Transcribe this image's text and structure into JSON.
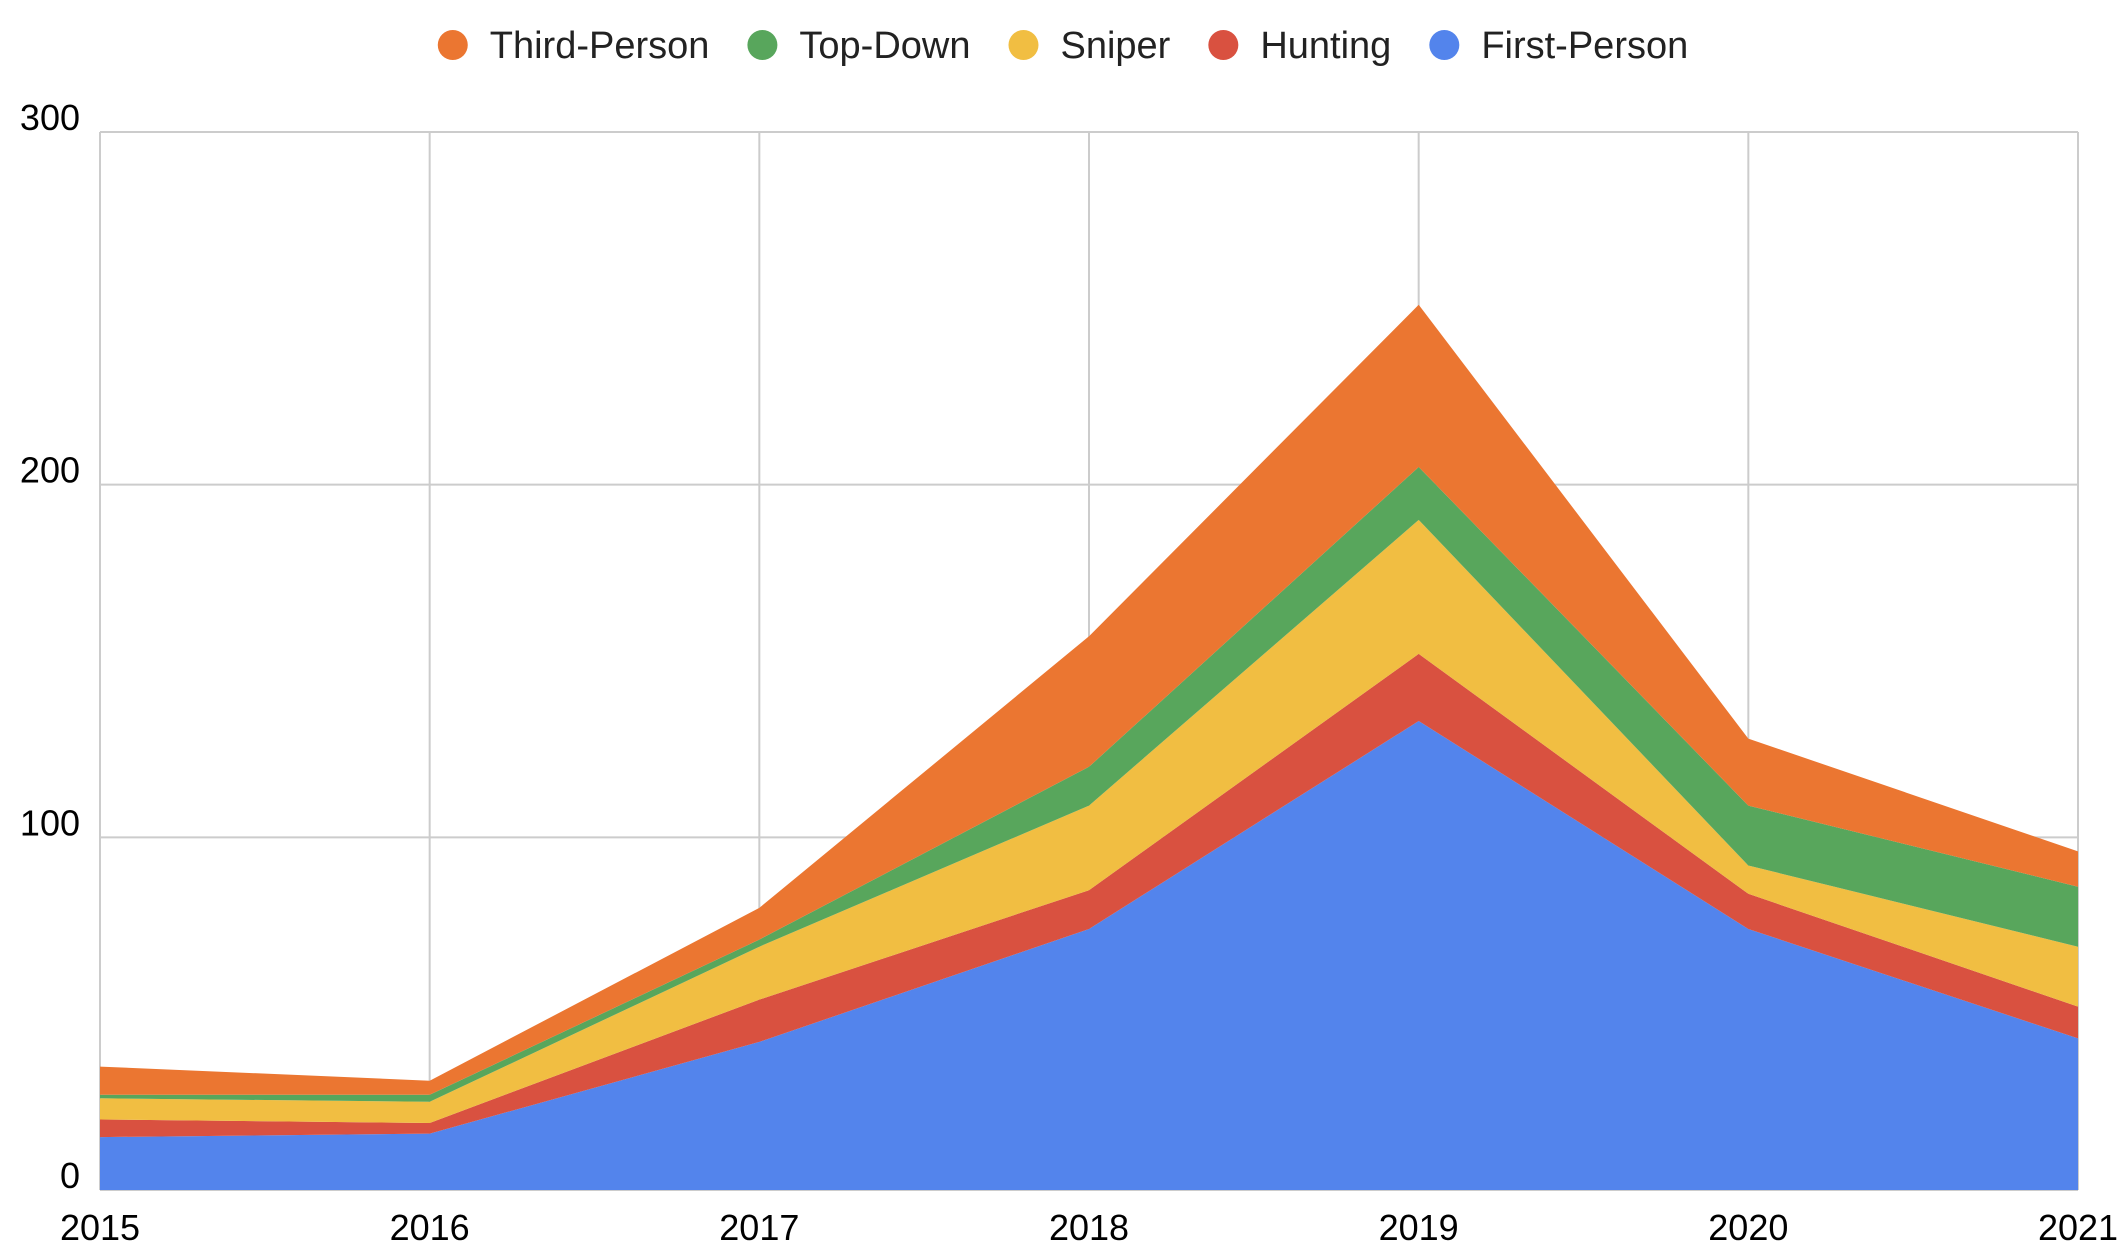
{
  "chart_data": {
    "type": "area",
    "stacked": true,
    "x": [
      2015,
      2016,
      2017,
      2018,
      2019,
      2020,
      2021
    ],
    "ylim": [
      0,
      300
    ],
    "yticks": [
      0,
      100,
      200,
      300
    ],
    "grid": true,
    "legend_position": "top",
    "title": "",
    "xlabel": "",
    "ylabel": "",
    "series": [
      {
        "name": "First-Person",
        "color": "#5384ec",
        "values": [
          15,
          16,
          42,
          74,
          133,
          74,
          43
        ]
      },
      {
        "name": "Hunting",
        "color": "#d95140",
        "values": [
          5,
          3,
          12,
          11,
          19,
          10,
          9
        ]
      },
      {
        "name": "Sniper",
        "color": "#f1be42",
        "values": [
          6,
          6,
          15,
          24,
          38,
          8,
          17
        ]
      },
      {
        "name": "Top-Down",
        "color": "#58a65c",
        "values": [
          1,
          2,
          2,
          11,
          15,
          17,
          17
        ]
      },
      {
        "name": "Third-Person",
        "color": "#eb7631",
        "values": [
          8,
          4,
          9,
          37,
          46,
          19,
          10
        ]
      }
    ],
    "legend_order": [
      "Third-Person",
      "Top-Down",
      "Sniper",
      "Hunting",
      "First-Person"
    ]
  }
}
